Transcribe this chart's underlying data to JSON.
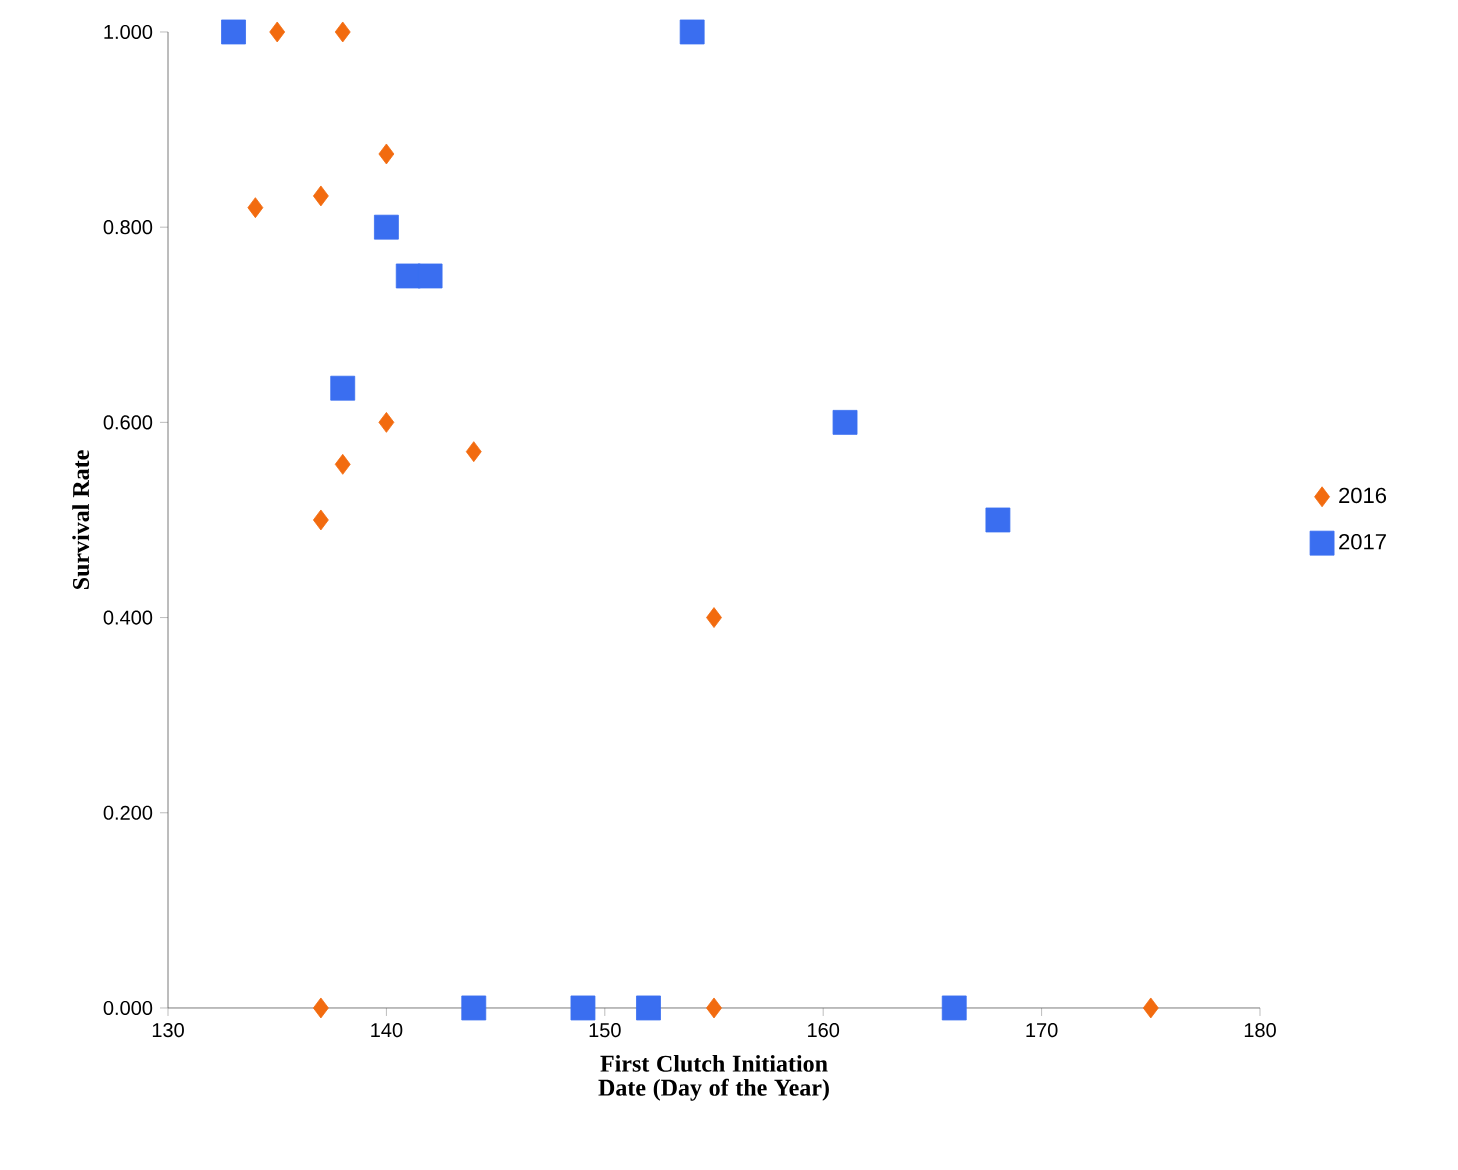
{
  "chart_data": {
    "type": "scatter",
    "xlabel": "First Clutch Initiation Date (Day of the Year)",
    "ylabel": "Survival Rate",
    "xlim": [
      130,
      180
    ],
    "xticks": [
      130,
      140,
      150,
      160,
      170,
      180
    ],
    "ylim": [
      0,
      1
    ],
    "yticks": [
      {
        "value": 0,
        "label": "0.000"
      },
      {
        "value": 0.2,
        "label": "0.200"
      },
      {
        "value": 0.4,
        "label": "0.400"
      },
      {
        "value": 0.6,
        "label": "0.600"
      },
      {
        "value": 0.8,
        "label": "0.800"
      },
      {
        "value": 1,
        "label": "1.000"
      }
    ],
    "legend": "right",
    "grid": false,
    "series": [
      {
        "name": "2016",
        "color": "#f26b0f",
        "marker": "diamond",
        "x": [
          135,
          138,
          140,
          134,
          137,
          140,
          138,
          137,
          144,
          155,
          137,
          155,
          175
        ],
        "values": [
          1.0,
          1.0,
          0.875,
          0.82,
          0.832,
          0.6,
          0.557,
          0.5,
          0.57,
          0.4,
          0,
          0,
          0
        ]
      },
      {
        "name": "2017",
        "color": "#3a6ef0",
        "marker": "square",
        "x": [
          133,
          154,
          140,
          141,
          142,
          138,
          161,
          168,
          144,
          149,
          152,
          166
        ],
        "values": [
          1.0,
          1.0,
          0.8,
          0.75,
          0.75,
          0.635,
          0.6,
          0.5,
          0,
          0,
          0,
          0
        ]
      }
    ]
  }
}
